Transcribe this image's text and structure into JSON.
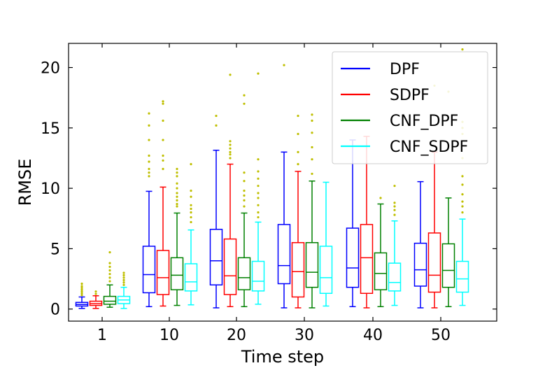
{
  "chart_data": {
    "type": "box",
    "xlabel": "Time step",
    "ylabel": "RMSE",
    "ylim": [
      -1,
      22
    ],
    "yticks": [
      0,
      5,
      10,
      15,
      20
    ],
    "categories": [
      "1",
      "10",
      "20",
      "30",
      "40",
      "50"
    ],
    "legend": {
      "placement": "top-right"
    },
    "outlier_color": "#bfbf00",
    "series": [
      {
        "name": "DPF",
        "color": "#0000ff",
        "boxes": [
          {
            "whislo": 0.05,
            "q1": 0.25,
            "med": 0.38,
            "q3": 0.55,
            "whishi": 1.0,
            "fliers": [
              1.15,
              1.3,
              1.45,
              1.6,
              1.75,
              1.9,
              2.1
            ]
          },
          {
            "whislo": 0.2,
            "q1": 1.35,
            "med": 2.85,
            "q3": 5.2,
            "whishi": 9.75,
            "fliers": [
              11.0,
              11.3,
              11.6,
              12.2,
              12.7,
              14.0,
              15.2,
              16.2
            ]
          },
          {
            "whislo": 0.1,
            "q1": 2.0,
            "med": 4.0,
            "q3": 6.6,
            "whishi": 13.15,
            "fliers": [
              15.2,
              16.0
            ]
          },
          {
            "whislo": 0.1,
            "q1": 2.1,
            "med": 3.6,
            "q3": 7.0,
            "whishi": 13.0,
            "fliers": [
              20.2
            ]
          },
          {
            "whislo": 0.2,
            "q1": 1.8,
            "med": 3.4,
            "q3": 6.7,
            "whishi": 14.0,
            "fliers": []
          },
          {
            "whislo": 0.1,
            "q1": 1.9,
            "med": 3.25,
            "q3": 5.45,
            "whishi": 10.55,
            "fliers": []
          }
        ]
      },
      {
        "name": "SDPF",
        "color": "#ff0000",
        "boxes": [
          {
            "whislo": 0.05,
            "q1": 0.3,
            "med": 0.45,
            "q3": 0.65,
            "whishi": 1.1,
            "fliers": [
              1.25,
              1.45
            ]
          },
          {
            "whislo": 0.25,
            "q1": 1.2,
            "med": 2.6,
            "q3": 4.85,
            "whishi": 10.1,
            "fliers": [
              11.6,
              12.3,
              12.7,
              14.0,
              15.6,
              17.0,
              17.2
            ]
          },
          {
            "whislo": 0.2,
            "q1": 1.2,
            "med": 2.75,
            "q3": 5.8,
            "whishi": 12.0,
            "fliers": [
              12.5,
              12.8,
              13.0,
              13.3,
              13.6,
              13.9,
              19.4
            ]
          },
          {
            "whislo": 0.1,
            "q1": 1.0,
            "med": 3.1,
            "q3": 5.5,
            "whishi": 11.4,
            "fliers": [
              12.0,
              13.0,
              14.5,
              16.0
            ]
          },
          {
            "whislo": 0.1,
            "q1": 1.3,
            "med": 4.25,
            "q3": 7.0,
            "whishi": 14.3,
            "fliers": []
          },
          {
            "whislo": 0.1,
            "q1": 1.4,
            "med": 2.8,
            "q3": 6.3,
            "whishi": 13.0,
            "fliers": [
              18.5
            ]
          }
        ]
      },
      {
        "name": "CNF_DPF",
        "color": "#008000",
        "boxes": [
          {
            "whislo": 0.15,
            "q1": 0.4,
            "med": 0.65,
            "q3": 1.05,
            "whishi": 2.0,
            "fliers": [
              2.3,
              2.6,
              2.9,
              3.2,
              3.5,
              3.8,
              4.7
            ]
          },
          {
            "whislo": 0.3,
            "q1": 1.6,
            "med": 2.8,
            "q3": 4.25,
            "whishi": 7.95,
            "fliers": [
              8.5,
              8.7,
              9.0,
              9.3,
              9.6,
              10.0,
              10.4,
              11.0,
              11.3,
              11.6
            ]
          },
          {
            "whislo": 0.2,
            "q1": 1.6,
            "med": 2.6,
            "q3": 4.25,
            "whishi": 7.95,
            "fliers": [
              8.5,
              9.0,
              9.4,
              9.8,
              10.6,
              11.3,
              17.0,
              17.7
            ]
          },
          {
            "whislo": 0.1,
            "q1": 1.8,
            "med": 3.05,
            "q3": 5.5,
            "whishi": 10.6,
            "fliers": [
              11.2,
              12.4,
              13.4,
              14.6,
              15.6,
              16.1
            ]
          },
          {
            "whislo": 0.2,
            "q1": 1.6,
            "med": 2.95,
            "q3": 4.65,
            "whishi": 8.7,
            "fliers": [
              9.2
            ]
          },
          {
            "whislo": 0.2,
            "q1": 1.8,
            "med": 3.2,
            "q3": 5.4,
            "whishi": 9.2,
            "fliers": [
              18.0
            ]
          }
        ]
      },
      {
        "name": "CNF_SDPF",
        "color": "#00ffff",
        "boxes": [
          {
            "whislo": 0.05,
            "q1": 0.45,
            "med": 0.75,
            "q3": 1.05,
            "whishi": 1.8,
            "fliers": [
              2.0,
              2.2,
              2.4,
              2.6,
              2.8,
              3.0
            ]
          },
          {
            "whislo": 0.35,
            "q1": 1.5,
            "med": 2.25,
            "q3": 3.75,
            "whishi": 6.55,
            "fliers": [
              7.2,
              7.6,
              8.0,
              8.3,
              8.6,
              9.3,
              9.8,
              12.0
            ]
          },
          {
            "whislo": 0.4,
            "q1": 1.5,
            "med": 2.3,
            "q3": 3.95,
            "whishi": 7.2,
            "fliers": [
              7.6,
              8.0,
              8.6,
              9.2,
              9.6,
              10.2,
              10.8,
              11.4,
              12.4,
              19.5
            ]
          },
          {
            "whislo": 0.25,
            "q1": 1.3,
            "med": 2.6,
            "q3": 5.2,
            "whishi": 10.5,
            "fliers": []
          },
          {
            "whislo": 0.3,
            "q1": 1.5,
            "med": 2.2,
            "q3": 3.8,
            "whishi": 7.3,
            "fliers": [
              7.8,
              8.2,
              8.5,
              8.8,
              10.2
            ]
          },
          {
            "whislo": 0.3,
            "q1": 1.4,
            "med": 2.5,
            "q3": 3.95,
            "whishi": 7.45,
            "fliers": [
              8.0,
              8.5,
              8.9,
              9.5,
              10.3,
              11.0,
              12.5,
              14.5,
              15.0,
              15.5,
              21.5
            ]
          }
        ]
      }
    ]
  }
}
